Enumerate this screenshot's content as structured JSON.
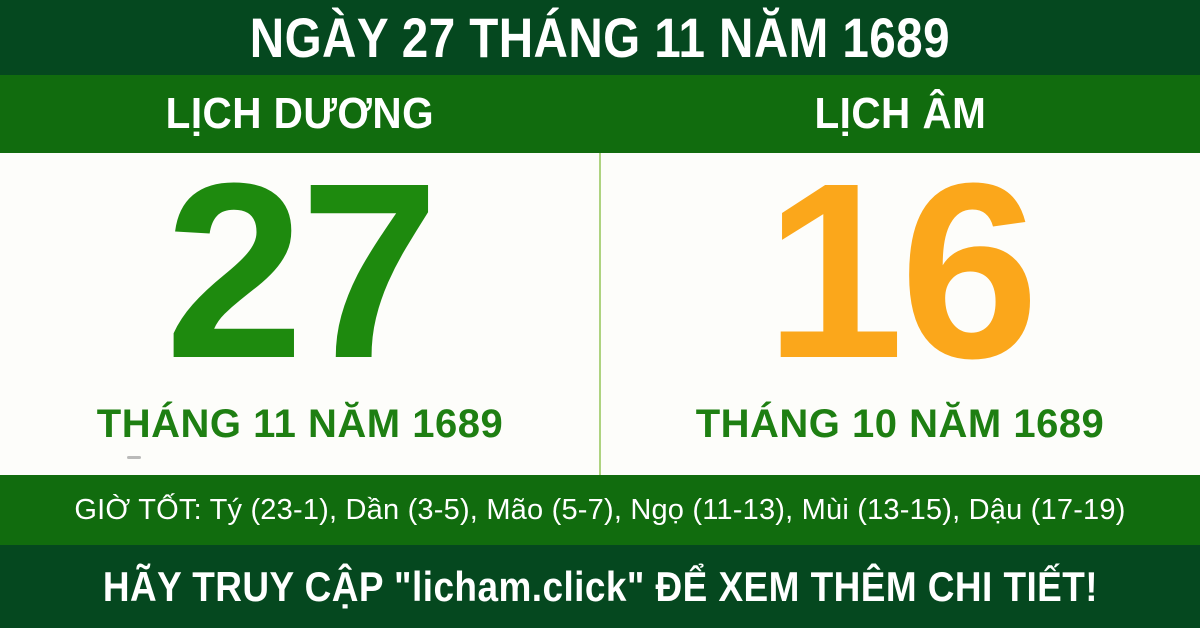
{
  "banner": {
    "date_title": "NGÀY 27 THÁNG 11 NĂM 1689",
    "solar": {
      "header": "LỊCH DƯƠNG",
      "day": "27",
      "month_year": "THÁNG 11 NĂM 1689"
    },
    "lunar": {
      "header": "LỊCH ÂM",
      "day": "16",
      "month_year": "THÁNG 10 NĂM 1689"
    },
    "good_hours": "GIỜ TỐT: Tý (23-1), Dần (3-5), Mão (5-7), Ngọ (11-13), Mùi (13-15), Dậu (17-19)",
    "footer_cta": "HÃY TRUY CẬP \"licham.click\" ĐỂ XEM THÊM CHI TIẾT!",
    "colors": {
      "dark_green_bar": "#05481f",
      "green_bar": "#116c0e",
      "solar_day_green": "#1e8a0e",
      "lunar_day_orange": "#fba71b",
      "month_text_green": "#1e7f12",
      "divider_light_green": "#aed380",
      "bar_text_white": "#ffffff"
    }
  }
}
